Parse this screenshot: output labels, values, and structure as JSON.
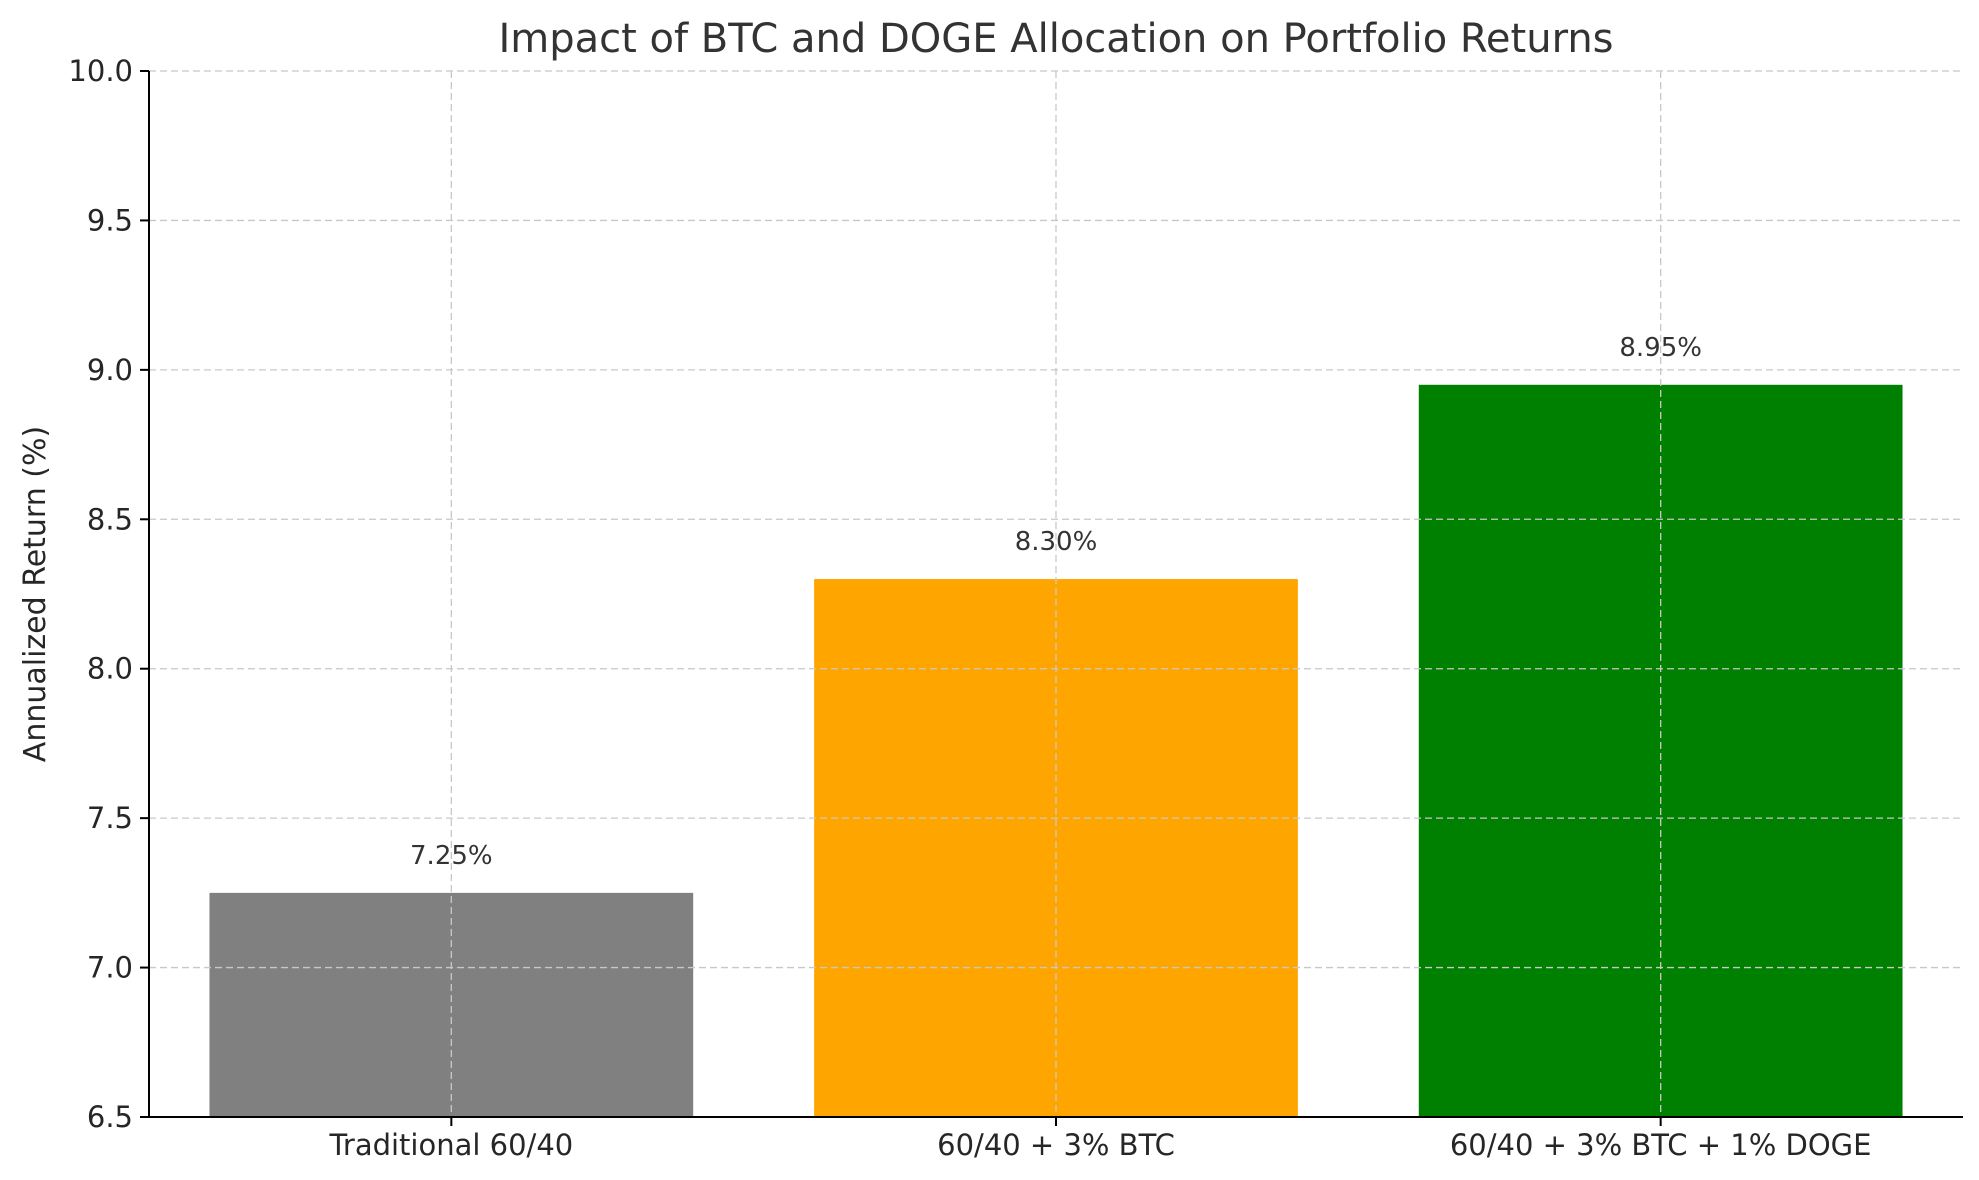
{
  "chart_data": {
    "type": "bar",
    "title": "Impact of BTC and DOGE Allocation on Portfolio Returns",
    "xlabel": "",
    "ylabel": "Annualized Return (%)",
    "categories": [
      "Traditional 60/40",
      "60/40 + 3% BTC",
      "60/40 + 3% BTC + 1% DOGE"
    ],
    "values": [
      7.25,
      8.3,
      8.95
    ],
    "data_labels": [
      "7.25%",
      "8.30%",
      "8.95%"
    ],
    "colors": [
      "#808080",
      "#ffa500",
      "#008000"
    ],
    "ylim": [
      6.5,
      10.0
    ],
    "yticks": [
      6.5,
      7.0,
      7.5,
      8.0,
      8.5,
      9.0,
      9.5,
      10.0
    ],
    "ytick_labels": [
      "6.5",
      "7.0",
      "7.5",
      "8.0",
      "8.5",
      "9.0",
      "9.5",
      "10.0"
    ],
    "grid": true,
    "legend": "none"
  }
}
